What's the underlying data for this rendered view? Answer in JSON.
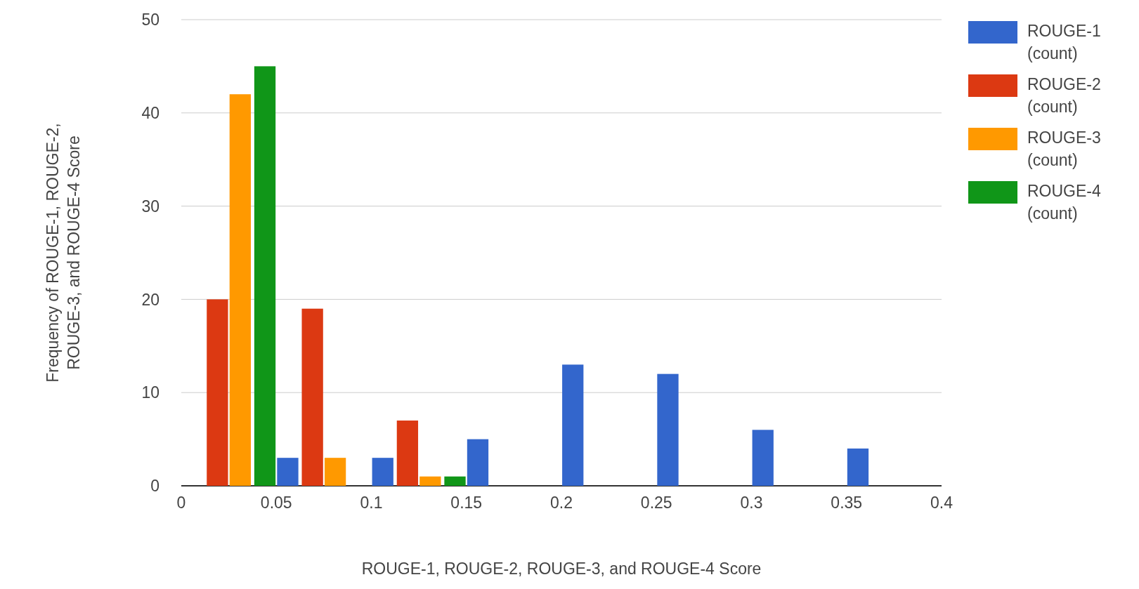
{
  "chart_data": {
    "type": "bar",
    "xlabel": "ROUGE-1, ROUGE-2, ROUGE-3, and ROUGE-4 Score",
    "ylabel": "Frequency of ROUGE-1, ROUGE-2, ROUGE-3, and ROUGE-4 Score",
    "xlim": [
      0,
      0.4
    ],
    "xticks": [
      0,
      0.05,
      0.1,
      0.15,
      0.2,
      0.25,
      0.3,
      0.35,
      0.4
    ],
    "ylim": [
      0,
      50
    ],
    "yticks": [
      0,
      10,
      20,
      30,
      40,
      50
    ],
    "grid": "y",
    "legend": "right",
    "series": [
      {
        "name": "ROUGE-1 (count)",
        "color": "#3366cc",
        "x": [
          0.056,
          0.106,
          0.156,
          0.206,
          0.256,
          0.306,
          0.356
        ],
        "values": [
          3,
          3,
          5,
          13,
          12,
          6,
          4
        ]
      },
      {
        "name": "ROUGE-2 (count)",
        "color": "#dc3912",
        "x": [
          0.019,
          0.069,
          0.119
        ],
        "values": [
          20,
          19,
          7
        ]
      },
      {
        "name": "ROUGE-3 (count)",
        "color": "#ff9900",
        "x": [
          0.031,
          0.081,
          0.131
        ],
        "values": [
          42,
          3,
          1
        ]
      },
      {
        "name": "ROUGE-4 (count)",
        "color": "#109618",
        "x": [
          0.044,
          0.144
        ],
        "values": [
          45,
          1
        ]
      }
    ]
  }
}
